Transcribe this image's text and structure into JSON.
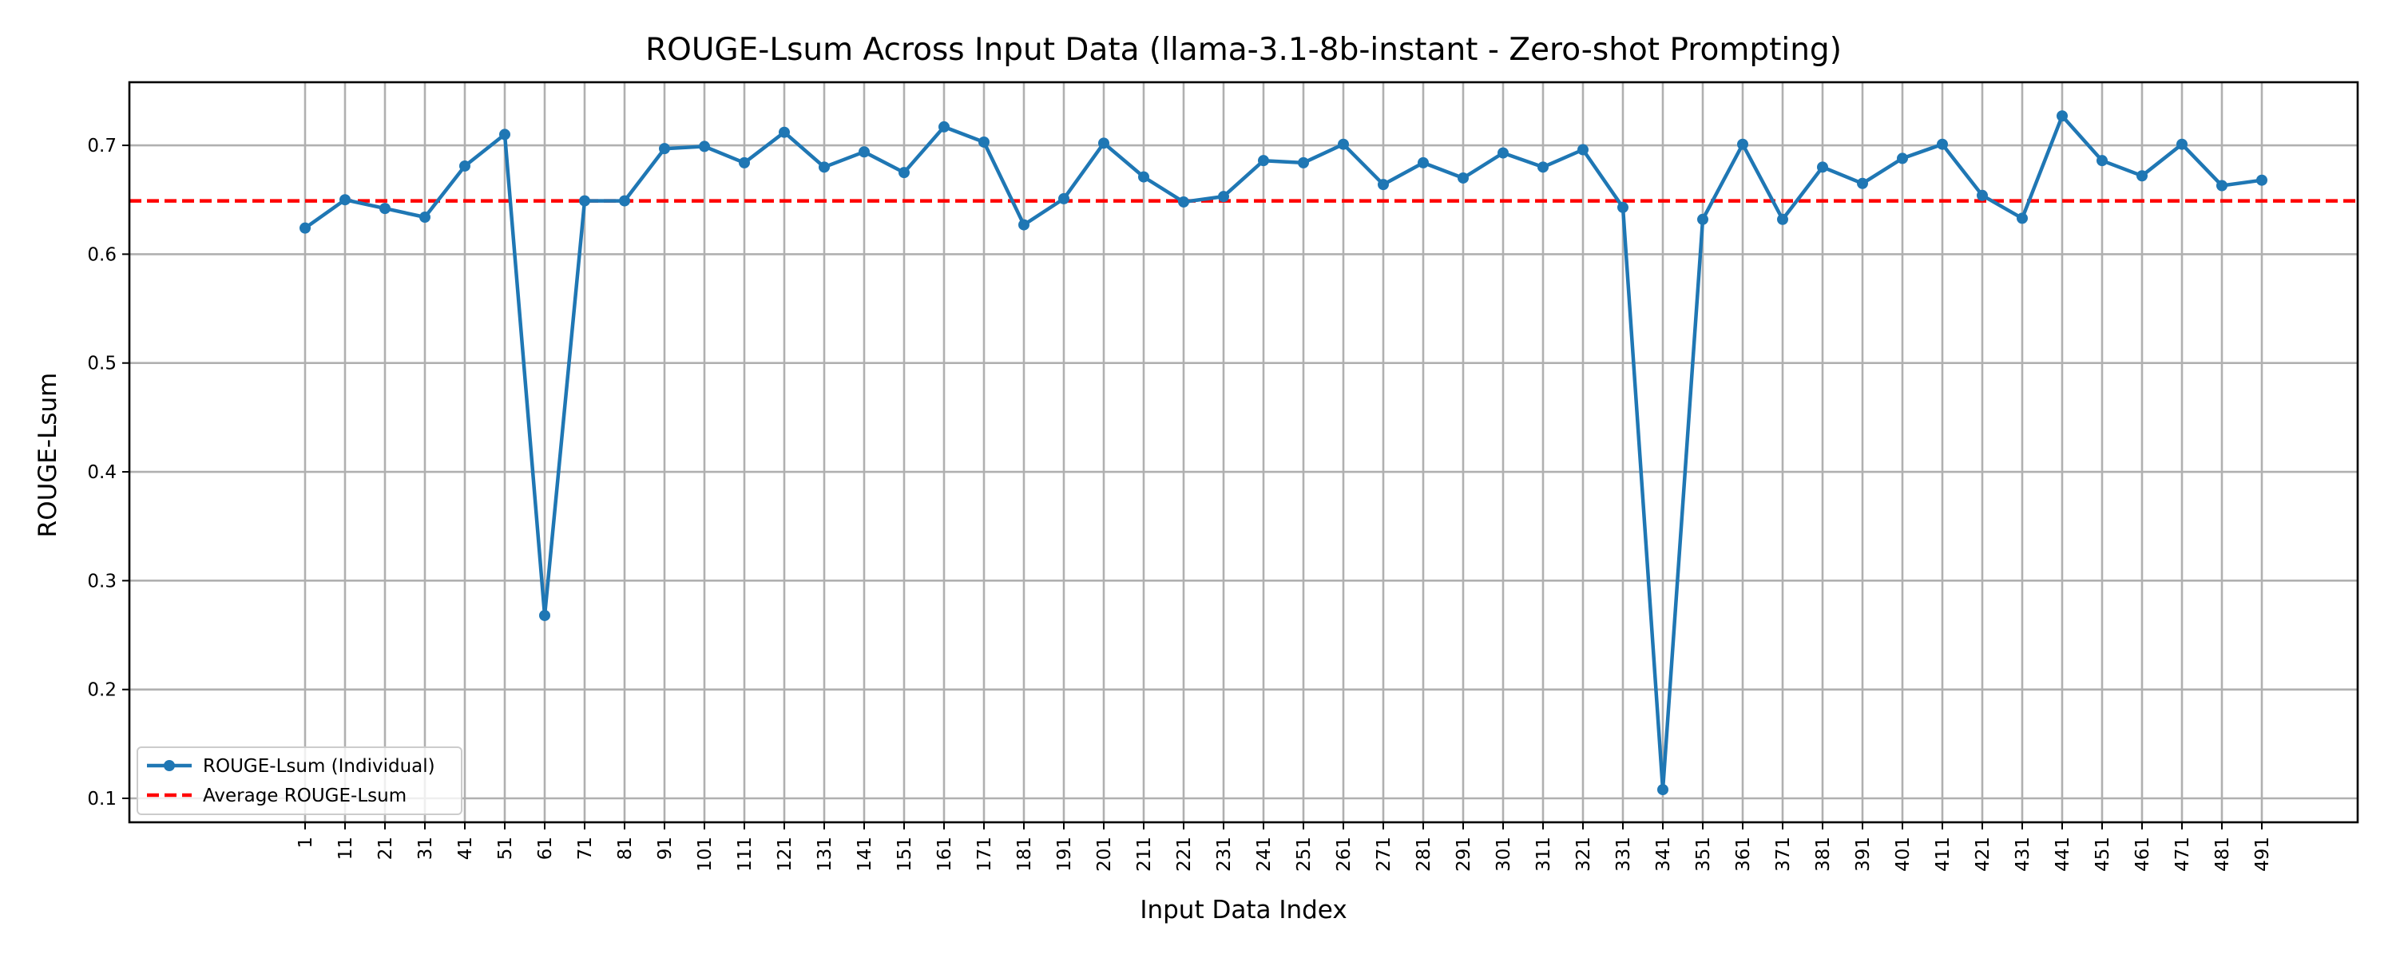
{
  "chart_data": {
    "type": "line",
    "title": "ROUGE-Lsum Across Input Data (llama-3.1-8b-instant - Zero-shot Prompting)",
    "xlabel": "Input Data Index",
    "ylabel": "ROUGE-Lsum",
    "x": [
      1,
      11,
      21,
      31,
      41,
      51,
      61,
      71,
      81,
      91,
      101,
      111,
      121,
      131,
      141,
      151,
      161,
      171,
      181,
      191,
      201,
      211,
      221,
      231,
      241,
      251,
      261,
      271,
      281,
      291,
      301,
      311,
      321,
      331,
      341,
      351,
      361,
      371,
      381,
      391,
      401,
      411,
      421,
      431,
      441,
      451,
      461,
      471,
      481,
      491
    ],
    "y_ticks": [
      "0.1",
      "0.2",
      "0.3",
      "0.4",
      "0.5",
      "0.6",
      "0.7"
    ],
    "ylim": [
      0.078,
      0.758
    ],
    "xlim": [
      -43,
      515
    ],
    "grid": true,
    "legend_position": "lower-left",
    "series": [
      {
        "name": "ROUGE-Lsum (Individual)",
        "color": "#1f77b4",
        "style": "line-with-markers",
        "values": [
          0.624,
          0.65,
          0.642,
          0.634,
          0.681,
          0.71,
          0.268,
          0.649,
          0.649,
          0.697,
          0.699,
          0.684,
          0.712,
          0.68,
          0.694,
          0.675,
          0.717,
          0.703,
          0.627,
          0.651,
          0.702,
          0.671,
          0.648,
          0.653,
          0.686,
          0.684,
          0.701,
          0.664,
          0.684,
          0.67,
          0.693,
          0.68,
          0.696,
          0.643,
          0.108,
          0.632,
          0.701,
          0.632,
          0.68,
          0.665,
          0.688,
          0.701,
          0.654,
          0.633,
          0.727,
          0.686,
          0.672,
          0.701,
          0.663,
          0.668
        ]
      },
      {
        "name": "Average ROUGE-Lsum",
        "color": "#ff0000",
        "style": "dashed",
        "value": 0.649
      }
    ]
  }
}
